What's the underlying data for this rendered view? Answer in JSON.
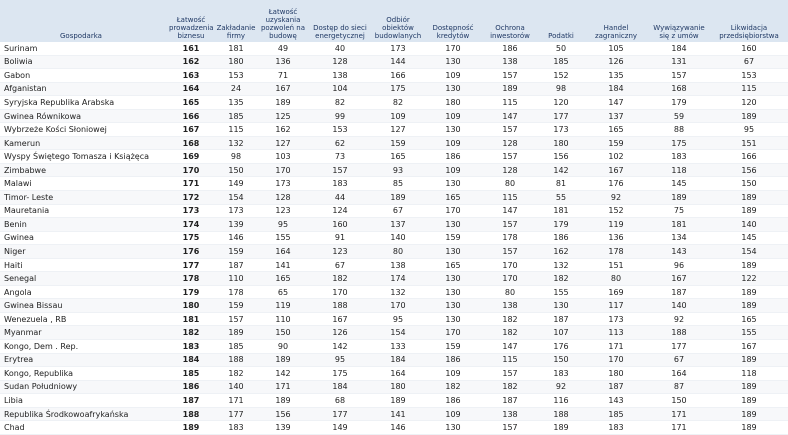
{
  "table": {
    "header": [
      "Gospodarka",
      "Łatwość prowadzenia biznesu",
      "Zakładanie firmy",
      "Łatwość uzyskania pozwoleń na budowę",
      "Dostęp do sieci energetycznej",
      "Odbiór obiektów budowlanych",
      "Dostępność kredytów",
      "Ochrona inwestorów",
      "Podatki",
      "Handel zagraniczny",
      "Wywiązywanie się z umów",
      "Likwidacja przedsiębiorstwa"
    ],
    "rows": [
      [
        "Surinam",
        161,
        181,
        49,
        40,
        173,
        170,
        186,
        50,
        105,
        184,
        160
      ],
      [
        "Boliwia",
        162,
        180,
        136,
        128,
        144,
        130,
        138,
        185,
        126,
        131,
        67
      ],
      [
        "Gabon",
        163,
        153,
        71,
        138,
        166,
        109,
        157,
        152,
        135,
        157,
        153
      ],
      [
        "Afganistan",
        164,
        24,
        167,
        104,
        175,
        130,
        189,
        98,
        184,
        168,
        115
      ],
      [
        "Syryjska Republika Arabska",
        165,
        135,
        189,
        82,
        82,
        180,
        115,
        120,
        147,
        179,
        120
      ],
      [
        "Gwinea Równikowa",
        166,
        185,
        125,
        99,
        109,
        109,
        147,
        177,
        137,
        59,
        189
      ],
      [
        "Wybrzeże Kości Słoniowej",
        167,
        115,
        162,
        153,
        127,
        130,
        157,
        173,
        165,
        88,
        95
      ],
      [
        "Kamerun",
        168,
        132,
        127,
        62,
        159,
        109,
        128,
        180,
        159,
        175,
        151
      ],
      [
        "Wyspy Świętego Tomasza i Książęca",
        169,
        98,
        103,
        73,
        165,
        186,
        157,
        156,
        102,
        183,
        166
      ],
      [
        "Zimbabwe",
        170,
        150,
        170,
        157,
        93,
        109,
        128,
        142,
        167,
        118,
        156
      ],
      [
        "Malawi",
        171,
        149,
        173,
        183,
        85,
        130,
        80,
        81,
        176,
        145,
        150
      ],
      [
        "Timor- Leste",
        172,
        154,
        128,
        44,
        189,
        165,
        115,
        55,
        92,
        189,
        189
      ],
      [
        "Mauretania",
        173,
        173,
        123,
        124,
        67,
        170,
        147,
        181,
        152,
        75,
        189
      ],
      [
        "Benin",
        174,
        139,
        95,
        160,
        137,
        130,
        157,
        179,
        119,
        181,
        140
      ],
      [
        "Gwinea",
        175,
        146,
        155,
        91,
        140,
        159,
        178,
        186,
        136,
        134,
        145
      ],
      [
        "Niger",
        176,
        159,
        164,
        123,
        80,
        130,
        157,
        162,
        178,
        143,
        154
      ],
      [
        "Haiti",
        177,
        187,
        141,
        67,
        138,
        165,
        170,
        132,
        151,
        96,
        189
      ],
      [
        "Senegal",
        178,
        110,
        165,
        182,
        174,
        130,
        170,
        182,
        80,
        167,
        122
      ],
      [
        "Angola",
        179,
        178,
        65,
        170,
        132,
        130,
        80,
        155,
        169,
        187,
        189
      ],
      [
        "Gwinea Bissau",
        180,
        159,
        119,
        188,
        170,
        130,
        138,
        130,
        117,
        140,
        189
      ],
      [
        "Wenezuela , RB",
        181,
        157,
        110,
        167,
        95,
        130,
        182,
        187,
        173,
        92,
        165
      ],
      [
        "Myanmar",
        182,
        189,
        150,
        126,
        154,
        170,
        182,
        107,
        113,
        188,
        155
      ],
      [
        "Kongo, Dem . Rep.",
        183,
        185,
        90,
        142,
        133,
        159,
        147,
        176,
        171,
        177,
        167
      ],
      [
        "Erytrea",
        184,
        188,
        189,
        95,
        184,
        186,
        115,
        150,
        170,
        67,
        189
      ],
      [
        "Kongo, Republika",
        185,
        182,
        142,
        175,
        164,
        109,
        157,
        183,
        180,
        164,
        118
      ],
      [
        "Sudan Południowy",
        186,
        140,
        171,
        184,
        180,
        182,
        182,
        92,
        187,
        87,
        189
      ],
      [
        "Libia",
        187,
        171,
        189,
        68,
        189,
        186,
        187,
        116,
        143,
        150,
        189
      ],
      [
        "Republika Środkowoafrykańska",
        188,
        177,
        156,
        177,
        141,
        109,
        138,
        188,
        185,
        171,
        189
      ],
      [
        "Chad",
        189,
        183,
        139,
        149,
        146,
        130,
        157,
        189,
        183,
        171,
        189
      ]
    ]
  }
}
